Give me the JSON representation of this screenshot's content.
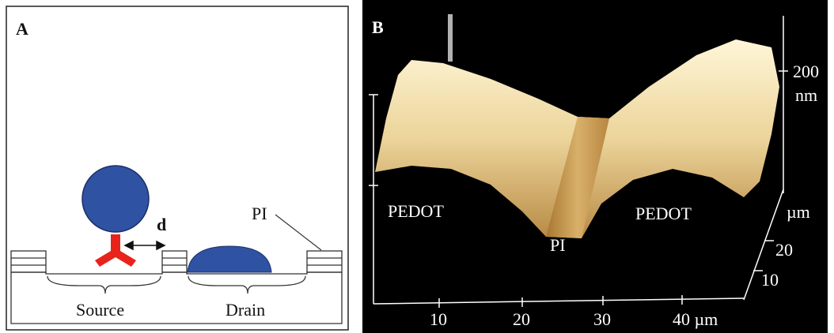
{
  "panel_a": {
    "label": "A",
    "distance_label": "d",
    "pi_label": "PI",
    "source_label": "Source",
    "drain_label": "Drain"
  },
  "panel_b": {
    "label": "B",
    "z_tick": "200",
    "z_unit": "nm",
    "left_material": "PEDOT",
    "right_material": "PEDOT",
    "center_material": "PI",
    "x_ticks": [
      "10",
      "20",
      "30",
      "40 µm"
    ],
    "y_unit": "µm",
    "y_ticks": [
      "20",
      "10"
    ]
  }
}
